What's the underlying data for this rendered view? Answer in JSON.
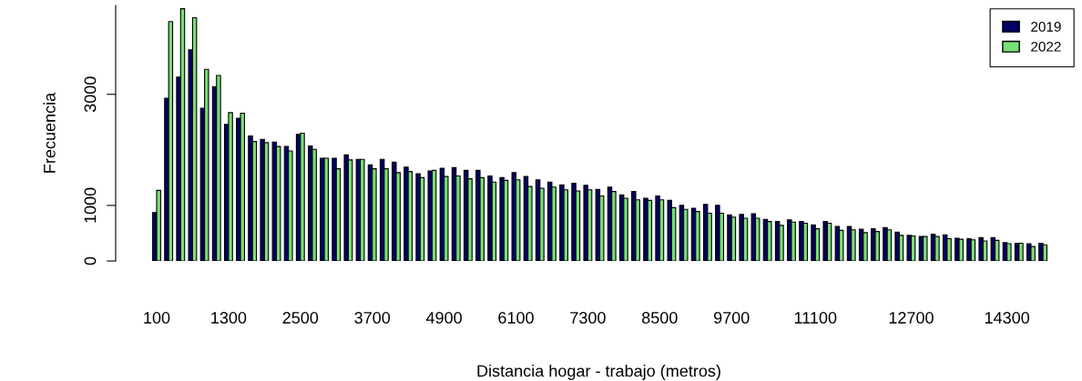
{
  "chart_data": {
    "type": "bar",
    "xlabel": "Distancia hogar - trabajo (metros)",
    "ylabel": "Frecuencia",
    "categories": [
      "100",
      null,
      null,
      null,
      null,
      null,
      "1300",
      null,
      null,
      null,
      null,
      null,
      "2500",
      null,
      null,
      null,
      null,
      null,
      "3700",
      null,
      null,
      null,
      null,
      null,
      "4900",
      null,
      null,
      null,
      null,
      null,
      "6100",
      null,
      null,
      null,
      null,
      null,
      "7300",
      null,
      null,
      null,
      null,
      null,
      "8500",
      null,
      null,
      null,
      null,
      null,
      "9700",
      null,
      null,
      null,
      null,
      null,
      null,
      "11100",
      null,
      null,
      null,
      null,
      null,
      null,
      null,
      "12700",
      null,
      null,
      null,
      null,
      null,
      null,
      null,
      "14300",
      null,
      null,
      null
    ],
    "series": [
      {
        "name": "2019",
        "color": "#000066",
        "values": [
          870,
          2930,
          3310,
          3800,
          2750,
          3140,
          2460,
          2570,
          2250,
          2190,
          2140,
          2060,
          2280,
          2070,
          1850,
          1850,
          1910,
          1830,
          1730,
          1830,
          1780,
          1690,
          1570,
          1620,
          1670,
          1680,
          1630,
          1630,
          1530,
          1500,
          1590,
          1520,
          1460,
          1420,
          1370,
          1400,
          1360,
          1290,
          1330,
          1190,
          1250,
          1130,
          1170,
          1090,
          1000,
          950,
          1020,
          1000,
          830,
          840,
          850,
          750,
          710,
          740,
          710,
          650,
          710,
          620,
          620,
          570,
          580,
          600,
          520,
          460,
          440,
          480,
          470,
          410,
          400,
          420,
          420,
          330,
          320,
          310,
          320
        ]
      },
      {
        "name": "2022",
        "color": "#77e077",
        "values": [
          1270,
          4310,
          4540,
          4380,
          3450,
          3340,
          2670,
          2660,
          2150,
          2130,
          2060,
          1980,
          2300,
          2010,
          1850,
          1660,
          1820,
          1830,
          1660,
          1660,
          1590,
          1610,
          1500,
          1630,
          1520,
          1530,
          1480,
          1500,
          1420,
          1450,
          1460,
          1340,
          1310,
          1330,
          1280,
          1260,
          1280,
          1170,
          1250,
          1130,
          1100,
          1090,
          1100,
          960,
          930,
          890,
          860,
          860,
          790,
          770,
          770,
          710,
          640,
          700,
          680,
          580,
          680,
          550,
          560,
          510,
          530,
          560,
          460,
          450,
          440,
          440,
          400,
          390,
          380,
          360,
          370,
          310,
          320,
          260,
          290
        ]
      }
    ],
    "ylim": [
      0,
      4600
    ],
    "yticks": [
      0,
      1000,
      3000
    ],
    "legend": "top right",
    "grid": false
  }
}
